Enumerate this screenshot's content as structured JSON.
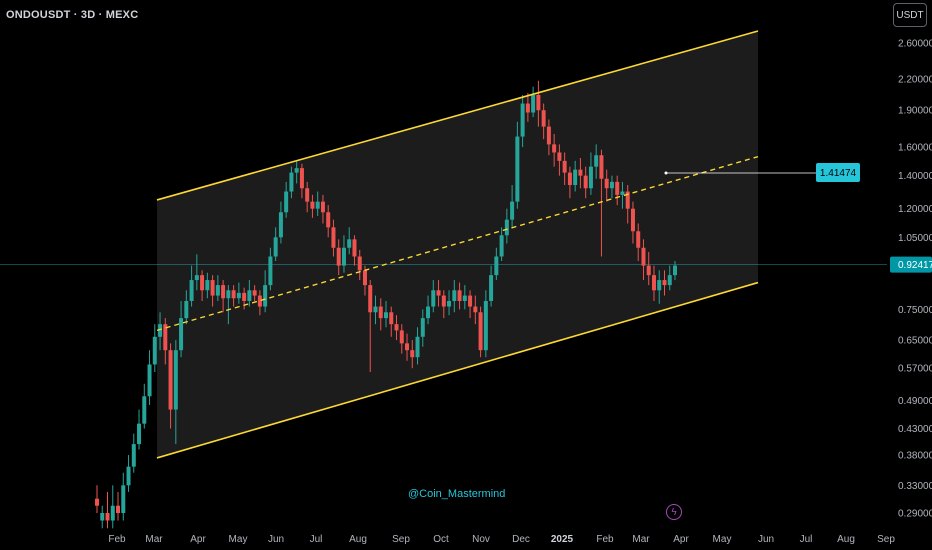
{
  "header": {
    "symbol_title": "ONDOUSDT · 3D · MEXC",
    "currency_button": "USDT"
  },
  "watermark": "@Coin_Mastermind",
  "icons": {
    "alert": "lightning-icon"
  },
  "colors": {
    "background": "#000000",
    "up_candle": "#26a69a",
    "down_candle": "#ef5350",
    "channel": "#fdd835",
    "channel_fill": "#1e1e1e",
    "axis_text": "#b2b5be",
    "price_label_bg": "#26c6da",
    "alert_icon": "#ab47bc"
  },
  "chart_data": {
    "type": "candlestick",
    "symbol": "ONDOUSDT",
    "interval": "3D",
    "exchange": "MEXC",
    "y_scale": "log",
    "y_ticks": [
      "2.60000",
      "2.20000",
      "1.90000",
      "1.60000",
      "1.40000",
      "1.20000",
      "1.05000",
      "0.92417",
      "0.75000",
      "0.65000",
      "0.57000",
      "0.49000",
      "0.43000",
      "0.38000",
      "0.33000",
      "0.29000"
    ],
    "x_ticks": [
      "Feb",
      "Mar",
      "Apr",
      "May",
      "Jun",
      "Jul",
      "Aug",
      "Sep",
      "Oct",
      "Nov",
      "Dec",
      "2025",
      "Feb",
      "Mar",
      "Apr",
      "May",
      "Jun",
      "Jul",
      "Aug",
      "Sep"
    ],
    "current_price": "0.92417",
    "target_label": "1.41474",
    "ylim": [
      0.27,
      2.9
    ],
    "channel": {
      "upper": {
        "start": [
          "Mar",
          1.25
        ],
        "end": [
          "Jun",
          2.75
        ]
      },
      "lower": {
        "start": [
          "Mar",
          0.375
        ],
        "end": [
          "Jun",
          0.85
        ]
      },
      "midline": {
        "start": [
          "Mar",
          0.68
        ],
        "end": [
          "Jun",
          1.53
        ]
      }
    },
    "candles": [
      [
        0.31,
        0.3,
        0.33,
        0.29
      ],
      [
        0.28,
        0.29,
        0.3,
        0.27
      ],
      [
        0.29,
        0.28,
        0.32,
        0.27
      ],
      [
        0.28,
        0.3,
        0.33,
        0.27
      ],
      [
        0.3,
        0.29,
        0.32,
        0.28
      ],
      [
        0.29,
        0.33,
        0.35,
        0.28
      ],
      [
        0.33,
        0.36,
        0.38,
        0.32
      ],
      [
        0.36,
        0.4,
        0.42,
        0.35
      ],
      [
        0.4,
        0.44,
        0.47,
        0.39
      ],
      [
        0.44,
        0.5,
        0.53,
        0.43
      ],
      [
        0.5,
        0.58,
        0.62,
        0.48
      ],
      [
        0.58,
        0.66,
        0.7,
        0.56
      ],
      [
        0.66,
        0.7,
        0.74,
        0.62
      ],
      [
        0.7,
        0.62,
        0.72,
        0.58
      ],
      [
        0.62,
        0.47,
        0.64,
        0.43
      ],
      [
        0.47,
        0.62,
        0.65,
        0.4
      ],
      [
        0.62,
        0.72,
        0.78,
        0.6
      ],
      [
        0.72,
        0.78,
        0.82,
        0.7
      ],
      [
        0.78,
        0.86,
        0.92,
        0.76
      ],
      [
        0.86,
        0.88,
        0.97,
        0.82
      ],
      [
        0.88,
        0.82,
        0.9,
        0.78
      ],
      [
        0.82,
        0.86,
        0.89,
        0.79
      ],
      [
        0.86,
        0.8,
        0.88,
        0.76
      ],
      [
        0.8,
        0.84,
        0.88,
        0.78
      ],
      [
        0.84,
        0.79,
        0.86,
        0.74
      ],
      [
        0.79,
        0.82,
        0.84,
        0.7
      ],
      [
        0.82,
        0.79,
        0.84,
        0.76
      ],
      [
        0.79,
        0.81,
        0.85,
        0.77
      ],
      [
        0.81,
        0.78,
        0.83,
        0.75
      ],
      [
        0.78,
        0.82,
        0.86,
        0.76
      ],
      [
        0.82,
        0.8,
        0.84,
        0.78
      ],
      [
        0.8,
        0.76,
        0.82,
        0.73
      ],
      [
        0.76,
        0.84,
        0.9,
        0.74
      ],
      [
        0.84,
        0.96,
        1.0,
        0.82
      ],
      [
        0.96,
        1.05,
        1.1,
        0.94
      ],
      [
        1.05,
        1.18,
        1.24,
        1.02
      ],
      [
        1.18,
        1.3,
        1.36,
        1.15
      ],
      [
        1.3,
        1.42,
        1.46,
        1.26
      ],
      [
        1.42,
        1.45,
        1.5,
        1.35
      ],
      [
        1.45,
        1.32,
        1.48,
        1.26
      ],
      [
        1.32,
        1.24,
        1.36,
        1.18
      ],
      [
        1.24,
        1.2,
        1.28,
        1.15
      ],
      [
        1.2,
        1.24,
        1.3,
        1.16
      ],
      [
        1.24,
        1.18,
        1.28,
        1.12
      ],
      [
        1.18,
        1.1,
        1.22,
        1.05
      ],
      [
        1.1,
        1.0,
        1.14,
        0.96
      ],
      [
        1.0,
        0.92,
        1.04,
        0.88
      ],
      [
        0.92,
        1.0,
        1.06,
        0.89
      ],
      [
        1.0,
        1.04,
        1.1,
        0.97
      ],
      [
        1.04,
        0.96,
        1.06,
        0.92
      ],
      [
        0.96,
        0.9,
        0.99,
        0.86
      ],
      [
        0.9,
        0.84,
        0.92,
        0.8
      ],
      [
        0.84,
        0.74,
        0.86,
        0.56
      ],
      [
        0.74,
        0.76,
        0.8,
        0.7
      ],
      [
        0.76,
        0.72,
        0.79,
        0.68
      ],
      [
        0.72,
        0.74,
        0.78,
        0.69
      ],
      [
        0.74,
        0.7,
        0.76,
        0.66
      ],
      [
        0.7,
        0.68,
        0.73,
        0.65
      ],
      [
        0.68,
        0.64,
        0.7,
        0.61
      ],
      [
        0.64,
        0.62,
        0.67,
        0.59
      ],
      [
        0.62,
        0.6,
        0.65,
        0.57
      ],
      [
        0.6,
        0.66,
        0.69,
        0.58
      ],
      [
        0.66,
        0.72,
        0.75,
        0.63
      ],
      [
        0.72,
        0.76,
        0.8,
        0.7
      ],
      [
        0.76,
        0.82,
        0.86,
        0.74
      ],
      [
        0.82,
        0.8,
        0.86,
        0.76
      ],
      [
        0.8,
        0.76,
        0.82,
        0.72
      ],
      [
        0.76,
        0.78,
        0.82,
        0.73
      ],
      [
        0.78,
        0.82,
        0.86,
        0.74
      ],
      [
        0.82,
        0.78,
        0.85,
        0.75
      ],
      [
        0.78,
        0.8,
        0.84,
        0.75
      ],
      [
        0.8,
        0.76,
        0.82,
        0.72
      ],
      [
        0.76,
        0.74,
        0.8,
        0.7
      ],
      [
        0.74,
        0.62,
        0.76,
        0.6
      ],
      [
        0.62,
        0.78,
        0.82,
        0.6
      ],
      [
        0.78,
        0.88,
        0.92,
        0.76
      ],
      [
        0.88,
        0.96,
        1.0,
        0.86
      ],
      [
        0.96,
        1.06,
        1.1,
        0.94
      ],
      [
        1.06,
        1.14,
        1.2,
        1.02
      ],
      [
        1.14,
        1.24,
        1.34,
        1.1
      ],
      [
        1.24,
        1.68,
        1.8,
        1.2
      ],
      [
        1.68,
        1.96,
        2.04,
        1.6
      ],
      [
        1.96,
        1.88,
        2.06,
        1.8
      ],
      [
        1.88,
        2.04,
        2.12,
        1.84
      ],
      [
        2.04,
        1.9,
        2.18,
        1.76
      ],
      [
        1.9,
        1.76,
        1.96,
        1.66
      ],
      [
        1.76,
        1.62,
        1.82,
        1.54
      ],
      [
        1.62,
        1.56,
        1.7,
        1.46
      ],
      [
        1.56,
        1.5,
        1.62,
        1.4
      ],
      [
        1.5,
        1.42,
        1.56,
        1.34
      ],
      [
        1.42,
        1.34,
        1.46,
        1.26
      ],
      [
        1.34,
        1.44,
        1.5,
        1.3
      ],
      [
        1.44,
        1.4,
        1.52,
        1.32
      ],
      [
        1.4,
        1.32,
        1.46,
        1.26
      ],
      [
        1.32,
        1.46,
        1.56,
        1.28
      ],
      [
        1.46,
        1.54,
        1.62,
        1.38
      ],
      [
        1.54,
        1.38,
        1.58,
        0.96
      ],
      [
        1.38,
        1.32,
        1.44,
        1.24
      ],
      [
        1.32,
        1.36,
        1.4,
        1.26
      ],
      [
        1.36,
        1.28,
        1.4,
        1.22
      ],
      [
        1.28,
        1.3,
        1.36,
        1.2
      ],
      [
        1.3,
        1.2,
        1.34,
        1.12
      ],
      [
        1.2,
        1.08,
        1.24,
        1.02
      ],
      [
        1.08,
        1.0,
        1.12,
        0.94
      ],
      [
        1.0,
        0.92,
        1.04,
        0.86
      ],
      [
        0.92,
        0.88,
        0.98,
        0.84
      ],
      [
        0.88,
        0.82,
        0.92,
        0.78
      ],
      [
        0.82,
        0.86,
        0.9,
        0.77
      ],
      [
        0.86,
        0.84,
        0.9,
        0.8
      ],
      [
        0.84,
        0.88,
        0.92,
        0.82
      ],
      [
        0.88,
        0.92,
        0.94,
        0.86
      ]
    ]
  }
}
